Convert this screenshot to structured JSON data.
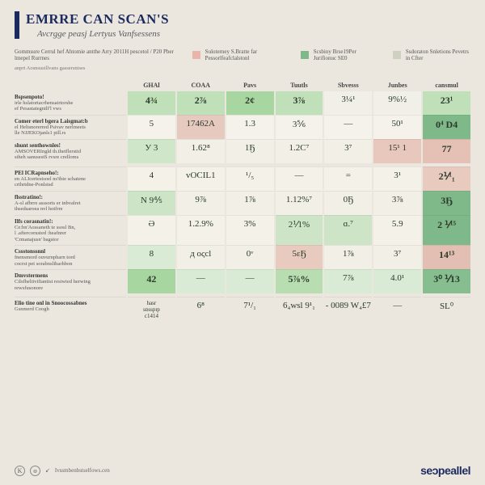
{
  "title": "EMRRE CAN SCAN'S",
  "subtitle": "Avcrgge peasj Lertyus Vanfsessens",
  "legend": [
    {
      "text": "Gommsure Cerrul hef Ahtomie antthe Arry 2011H pescetol / P20 Pber lmepel Rurrnes",
      "sw": null,
      "wide": true
    },
    {
      "text": "Suloterney S.Bratte far Pessorlfeafclalstonl",
      "sw": "#e8b5aa"
    },
    {
      "text": "Scsbiny Brse19Per Jurifionuc SE0",
      "sw": "#7fb98a"
    },
    {
      "text": "Ssdoraton Snletions Pevetrs in Cfter",
      "sw": "#cfcfc2"
    }
  ],
  "legend_line": "anprt Aosnsusillvans gassersnises",
  "columns": [
    "GHAl",
    "COAA",
    "Pavs",
    "Tuutls",
    "Sbvesss",
    "Junbes",
    "cansmul"
  ],
  "rows": [
    {
      "title": "Bspsenpoto!",
      "lines": [
        "irle hslatortacrhensairtorshe",
        "ef Pesastategnilf'l vws"
      ],
      "cells": [
        {
          "v": "4¾",
          "bg": "#bfe0b8",
          "b": 1
        },
        {
          "v": "2⅞",
          "bg": "#bfe0b8",
          "b": 1
        },
        {
          "v": "2¢",
          "bg": "#a8d6a0",
          "b": 1
        },
        {
          "v": "3⅞",
          "bg": "#bfe0b8",
          "b": 1
        },
        {
          "v": "3¼¹",
          "bg": "#f1f0e8"
        },
        {
          "v": "9%½",
          "bg": "#f1f0e8"
        },
        {
          "v": "23¹",
          "bg": "#bfe0b8",
          "b": 1
        }
      ]
    },
    {
      "title": "Comer eterl bgera Laisgmat:b",
      "lines": [
        "el Heltsnorerred Psivav nerlmeets",
        "lle NJJEKOjanls1 pill.rs"
      ],
      "cells": [
        {
          "v": "5",
          "bg": "#f4f2ea"
        },
        {
          "v": "17462A",
          "bg": "#e6c9bf"
        },
        {
          "v": "1.3",
          "bg": "#f4f2ea"
        },
        {
          "v": "3⅚",
          "bg": "#f4f2ea"
        },
        {
          "v": "—",
          "bg": "#f4f2ea"
        },
        {
          "v": "50¹",
          "bg": "#f4f2ea"
        },
        {
          "v": "0⁴  D4",
          "bg": "#7fb98a",
          "b": 1
        }
      ]
    },
    {
      "title": "shunt senthownles!",
      "lines": [
        "AMSOVERIngld th.thetflerstid",
        "stheh sanusestS rvsre crelloms"
      ],
      "cells": [
        {
          "v": "У  3",
          "bg": "#cfe6c9"
        },
        {
          "v": "1.62⁸",
          "bg": "#f1efe6"
        },
        {
          "v": "1Ҕ",
          "bg": "#f1efe6"
        },
        {
          "v": "1.2C⁷",
          "bg": "#f1efe6"
        },
        {
          "v": "3⁷",
          "bg": "#f1efe6"
        },
        {
          "v": "15¹ 1",
          "bg": "#e8c7bd"
        },
        {
          "v": "77",
          "bg": "#e4c0b5",
          "b": 1
        }
      ]
    },
    {
      "title": "PEl ICRapnseho!:",
      "lines": [
        "en ALIcertestsoel ns'thie schatene",
        "crthrtdne-Ponlstsd"
      ],
      "cells": [
        {
          "v": "4",
          "bg": "#f3f1e8"
        },
        {
          "v": "vOCIL1",
          "bg": "#f3f1e8"
        },
        {
          "v": "¹/₅",
          "bg": "#f3f1e8"
        },
        {
          "v": "—",
          "bg": "#f3f1e8"
        },
        {
          "v": "=",
          "bg": "#f3f1e8"
        },
        {
          "v": "3¹",
          "bg": "#f3f1e8"
        },
        {
          "v": "2⅟¹₁",
          "bg": "#e9cabf",
          "b": 1
        }
      ]
    },
    {
      "title": "flsstratino!:",
      "lines": [
        "A-sl afbrre asssorts er inbvalret",
        "thsedsaroea nvl hotfrre"
      ],
      "cells": [
        {
          "v": "N  9⅘",
          "bg": "#cde4c7"
        },
        {
          "v": "9⅞",
          "bg": "#f1efe6"
        },
        {
          "v": "1⅞",
          "bg": "#f1efe6"
        },
        {
          "v": "1.12%⁷",
          "bg": "#f1efe6"
        },
        {
          "v": "0Ҕ",
          "bg": "#f1efe6"
        },
        {
          "v": "3⅞",
          "bg": "#f1efe6"
        },
        {
          "v": "3Ҕ",
          "bg": "#7fb98a",
          "b": 1
        }
      ]
    },
    {
      "title": "Ilfs corasnatin!:",
      "lines": [
        "Ce:bn'Aossaneth te ssosl Bn,",
        "l .aftercorusted :heafnrer",
        "'Crmanajusn' bagstor"
      ],
      "cells": [
        {
          "v": "Ә",
          "bg": "#f3f1e8"
        },
        {
          "v": "1.2.9%",
          "bg": "#f3f1e8"
        },
        {
          "v": "3%",
          "bg": "#f3f1e8"
        },
        {
          "v": "2⅟1%",
          "bg": "#cde4c7"
        },
        {
          "v": "ɑ.⁷",
          "bg": "#cde4c7"
        },
        {
          "v": "5.9",
          "bg": "#f3f1e8"
        },
        {
          "v": "2 ⅟¹⁵",
          "bg": "#7fb98a",
          "b": 1
        }
      ]
    },
    {
      "title": "Cssstonssnnl",
      "lines": [
        "fnensmord ouvurnpharn tord",
        "cocrst pet sorabnslibarhbon"
      ],
      "cells": [
        {
          "v": "8",
          "bg": "#d9ebd4"
        },
        {
          "v": "д  oςcl",
          "bg": "#f1efe6"
        },
        {
          "v": "0ᵛ",
          "bg": "#f1efe6"
        },
        {
          "v": "5ɛҔ",
          "bg": "#e9cabf"
        },
        {
          "v": "1⅞",
          "bg": "#f1efe6"
        },
        {
          "v": "3⁷",
          "bg": "#f1efe6"
        },
        {
          "v": "14¹³",
          "bg": "#e3beb2",
          "b": 1
        }
      ]
    },
    {
      "title": "Dmvstermens",
      "lines": [
        "Cilsfheltivifiantist resiwied herwing",
        "rewsfusonore"
      ],
      "cells": [
        {
          "v": "42",
          "bg": "#a8d6a0",
          "b": 1
        },
        {
          "v": "—",
          "bg": "#d9ebd4"
        },
        {
          "v": "—",
          "bg": "#d9ebd4"
        },
        {
          "v": "5⅞%",
          "bg": "#b8ddb1",
          "b": 1
        },
        {
          "v": "7⅞",
          "bg": "#d9ebd4"
        },
        {
          "v": "4.0¹",
          "bg": "#d9ebd4"
        },
        {
          "v": "3⁰  ⅟13",
          "bg": "#86be90",
          "b": 1
        }
      ]
    }
  ],
  "summary": {
    "labels": [
      "hasr",
      "sɒsspɪp",
      "ϲ1414"
    ],
    "cells": [
      "6⁸",
      "7¹/₁",
      "6₄wsl  9¹₁",
      "- 0089  W₄£7",
      "—",
      "SL⁰"
    ]
  },
  "summary_title": "Elio tine onl in Snoocossabnes",
  "summary_sub": "Gsnmerd Coogh",
  "footer_text": "Ivssmbenbstselfows.cen",
  "brand": "seɔpeallel",
  "colors": {
    "navy": "#1b2a5f",
    "green": "#7fb98a",
    "light_green": "#cde4c7",
    "peach": "#e8c7bd",
    "bg": "#ebe7df"
  }
}
